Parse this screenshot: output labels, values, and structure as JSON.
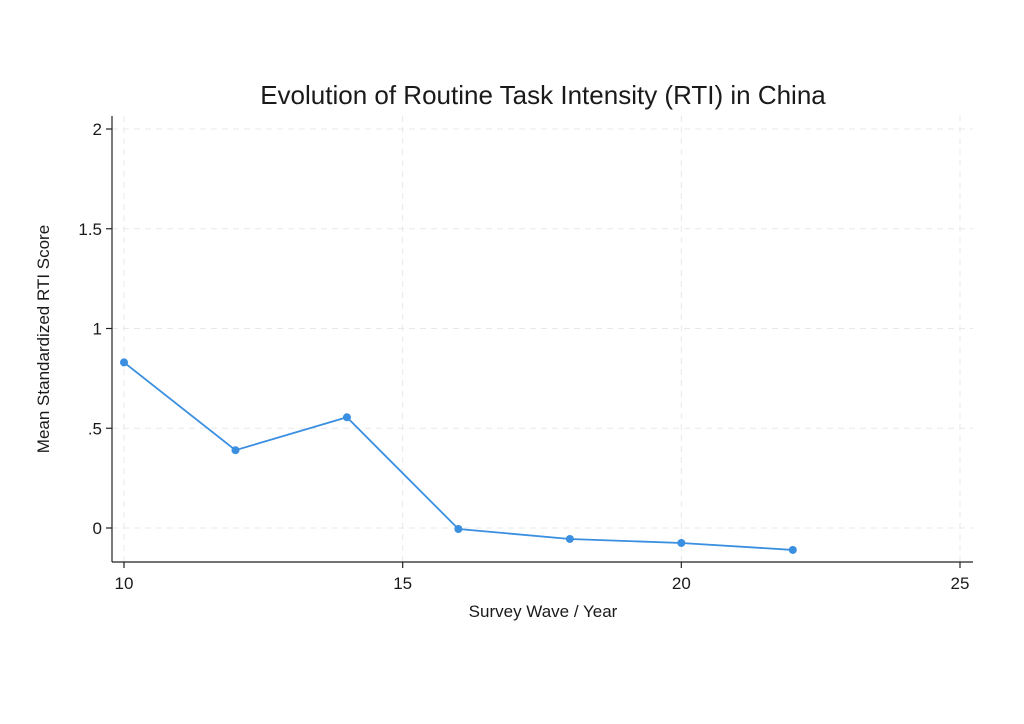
{
  "chart_data": {
    "type": "line",
    "title": "Evolution of Routine Task Intensity (RTI) in China",
    "xlabel": "Survey Wave / Year",
    "ylabel": "Mean Standardized RTI Score",
    "xlim": [
      10,
      25
    ],
    "ylim": [
      -0.17,
      2.05
    ],
    "x_ticks": [
      10,
      15,
      20,
      25
    ],
    "x_tick_labels": [
      "10",
      "15",
      "20",
      "25"
    ],
    "y_ticks": [
      0,
      0.5,
      1,
      1.5,
      2
    ],
    "y_tick_labels": [
      "0",
      ".5",
      "1",
      "1.5",
      "2"
    ],
    "grid": true,
    "series": [
      {
        "color": "#3a8fe0",
        "points": [
          {
            "x": 10,
            "y": 0.83
          },
          {
            "x": 12,
            "y": 0.39
          },
          {
            "x": 14,
            "y": 0.555
          },
          {
            "x": 16,
            "y": -0.005
          },
          {
            "x": 18,
            "y": -0.055
          },
          {
            "x": 20,
            "y": -0.075
          },
          {
            "x": 22,
            "y": -0.11
          }
        ]
      }
    ]
  }
}
